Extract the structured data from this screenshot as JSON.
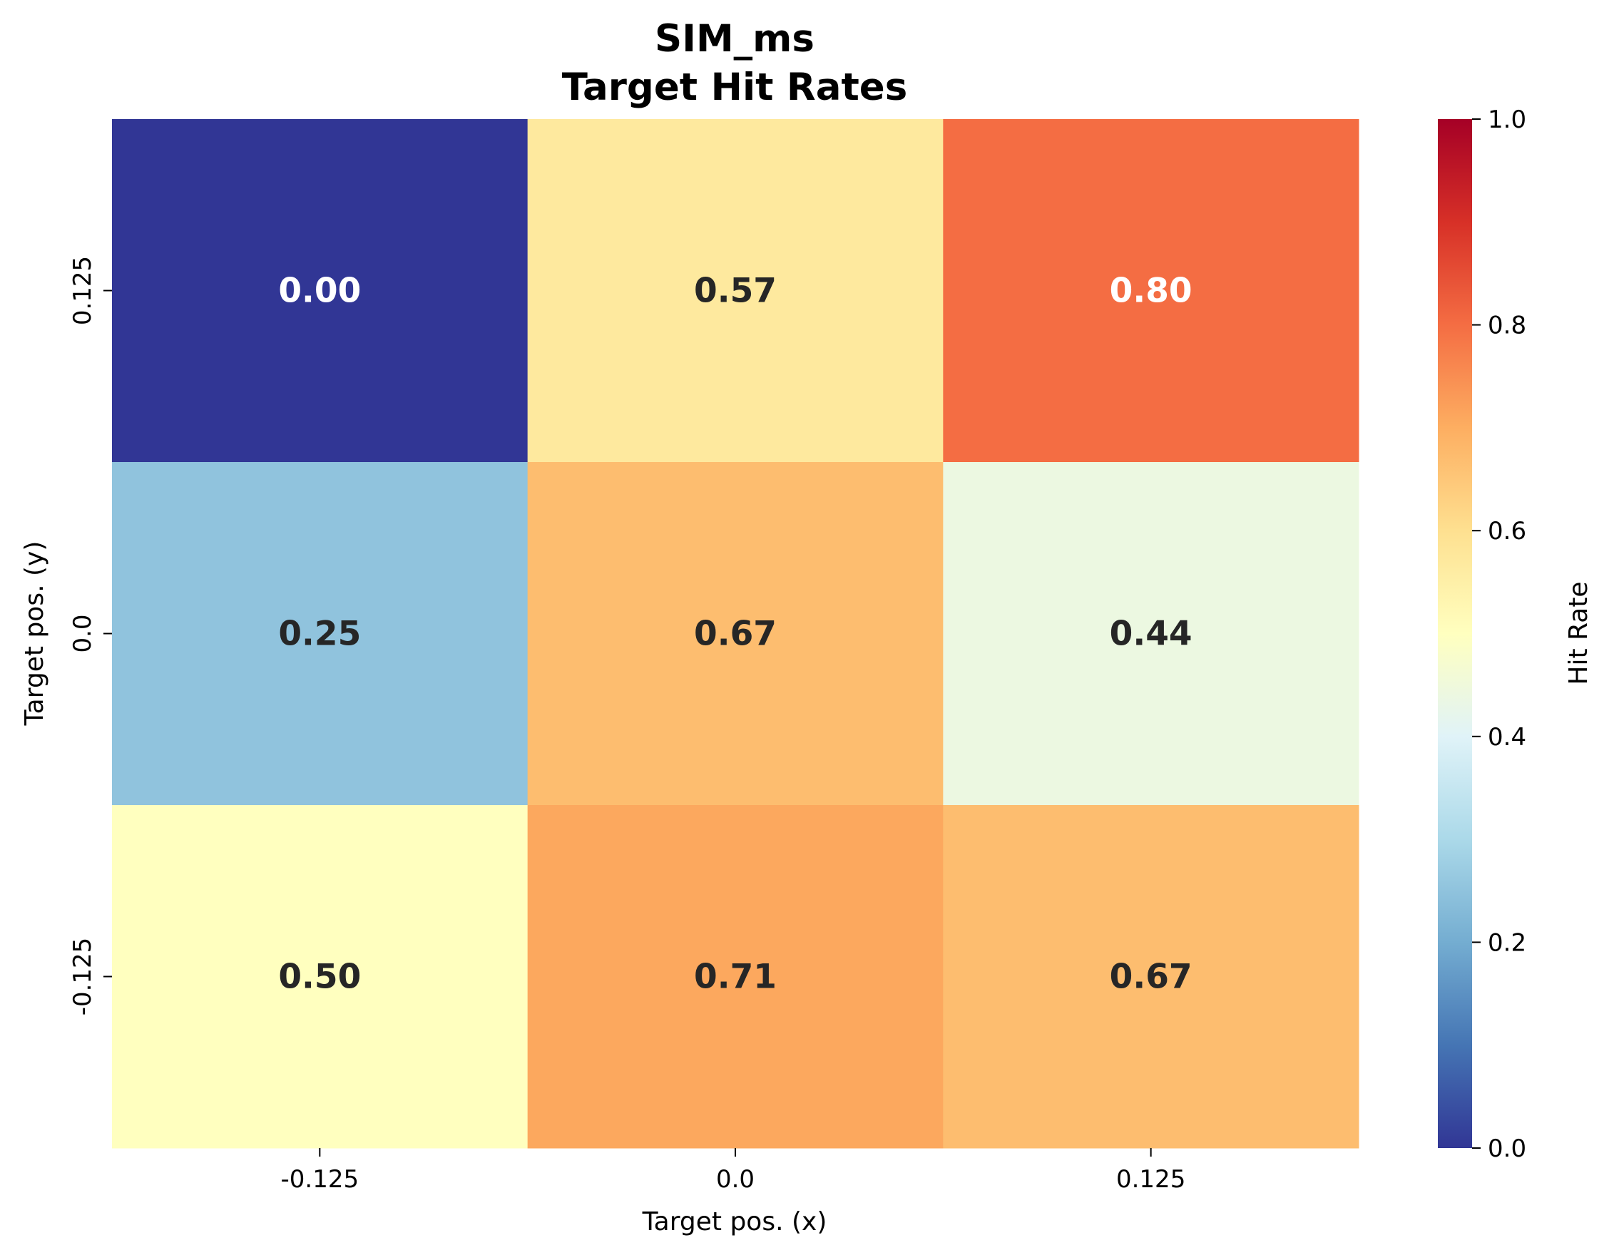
{
  "chart_data": {
    "type": "heatmap",
    "title": "SIM_ms",
    "subtitle": "Target Hit Rates",
    "xlabel": "Target pos. (x)",
    "ylabel": "Target pos. (y)",
    "x_categories": [
      "-0.125",
      "0.0",
      "0.125"
    ],
    "y_categories": [
      "0.125",
      "0.0",
      "-0.125"
    ],
    "values": [
      [
        0.0,
        0.57,
        0.8
      ],
      [
        0.25,
        0.67,
        0.44
      ],
      [
        0.5,
        0.71,
        0.67
      ]
    ],
    "cell_labels": [
      [
        "0.00",
        "0.57",
        "0.80"
      ],
      [
        "0.25",
        "0.67",
        "0.44"
      ],
      [
        "0.50",
        "0.71",
        "0.67"
      ]
    ],
    "colorbar": {
      "label": "Hit Rate",
      "range": [
        0,
        1
      ],
      "ticks": [
        "0.0",
        "0.2",
        "0.4",
        "0.6",
        "0.8",
        "1.0"
      ],
      "colormap": "RdYlBu_r"
    },
    "colors": {
      "colormap_stops": [
        "#313695",
        "#4575b4",
        "#74add1",
        "#abd9e9",
        "#e0f3f8",
        "#ffffbf",
        "#fee090",
        "#fdae61",
        "#f46d43",
        "#d73027",
        "#a50026"
      ],
      "label_dark": "#262626",
      "label_light": "#ffffff"
    }
  }
}
